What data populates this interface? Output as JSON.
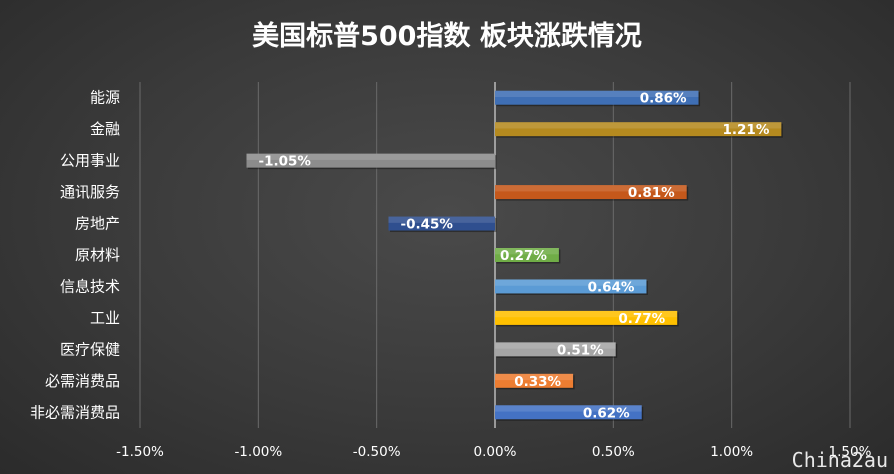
{
  "chart_data": {
    "type": "bar",
    "orientation": "horizontal",
    "title": "美国标普500指数 板块涨跌情况",
    "categories": [
      "能源",
      "金融",
      "公用事业",
      "通讯服务",
      "房地产",
      "原材料",
      "信息技术",
      "工业",
      "医疗保健",
      "必需消费品",
      "非必需消费品"
    ],
    "values": [
      0.86,
      1.21,
      -1.05,
      0.81,
      -0.45,
      0.27,
      0.64,
      0.77,
      0.51,
      0.33,
      0.62
    ],
    "value_labels": [
      "0.86%",
      "1.21%",
      "-1.05%",
      "0.81%",
      "-0.45%",
      "0.27%",
      "0.64%",
      "0.77%",
      "0.51%",
      "0.33%",
      "0.62%"
    ],
    "colors": [
      "#3f6fb5",
      "#b58a1f",
      "#8c8c8c",
      "#c5581b",
      "#2f4f8f",
      "#70ad47",
      "#5b9bd5",
      "#ffc000",
      "#a5a5a5",
      "#ed7d31",
      "#4472c4"
    ],
    "xlim": [
      -1.5,
      1.5
    ],
    "xticks": [
      -1.5,
      -1.0,
      -0.5,
      0.0,
      0.5,
      1.0,
      1.5
    ],
    "xtick_labels": [
      "-1.50%",
      "-1.00%",
      "-0.50%",
      "0.00%",
      "0.50%",
      "1.00%",
      "1.50%"
    ],
    "grid": true
  },
  "watermark": "China2au"
}
